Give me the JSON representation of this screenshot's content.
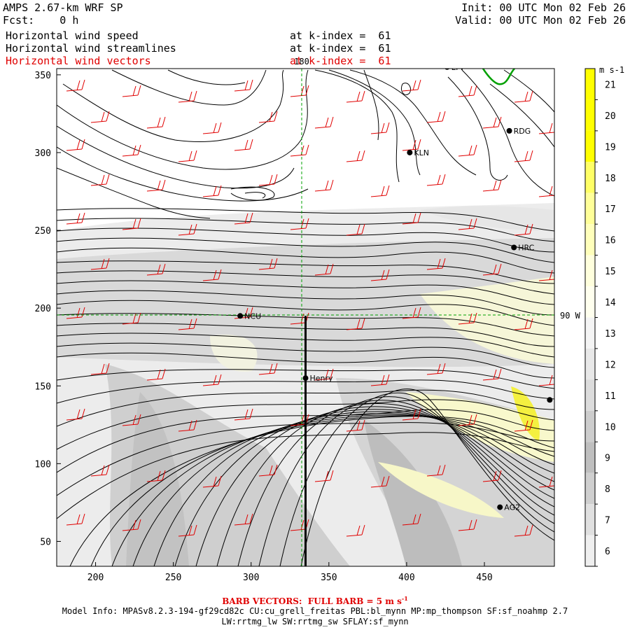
{
  "header": {
    "model_title": "AMPS 2.67-km WRF SP",
    "forecast": "Fcst:    0 h",
    "init": "Init: 00 UTC Mon 02 Feb 26",
    "valid": "Valid: 00 UTC Mon 02 Feb 26",
    "layers": [
      {
        "name": "Horizontal wind speed",
        "level": "at k-index =  61",
        "color": "#000000"
      },
      {
        "name": "Horizontal wind streamlines",
        "level": "at k-index =  61",
        "color": "#000000"
      },
      {
        "name": "Horizontal wind vectors",
        "level": "at k-index =  61",
        "color": "#e00000"
      }
    ]
  },
  "map": {
    "x_ticks": [
      "200",
      "250",
      "300",
      "350",
      "400",
      "450"
    ],
    "y_ticks": [
      "350",
      "300",
      "250",
      "200",
      "150",
      "100",
      "50"
    ],
    "meridian_label": "180",
    "parallel_label": "90 W",
    "stations": [
      {
        "name": "LYV",
        "x": 426,
        "y": 355
      },
      {
        "name": "RDG",
        "x": 466,
        "y": 314
      },
      {
        "name": "KLN",
        "x": 402,
        "y": 300
      },
      {
        "name": "HRC",
        "x": 469,
        "y": 239
      },
      {
        "name": "NCU",
        "x": 293,
        "y": 195
      },
      {
        "name": "Henry",
        "x": 335,
        "y": 155
      },
      {
        "name": "AG2",
        "x": 460,
        "y": 72
      },
      {
        "name": "",
        "x": 492,
        "y": 141
      }
    ],
    "transect": {
      "x": 335,
      "y_from": 34,
      "y_to": 195
    }
  },
  "colorbar": {
    "units": "m s-1",
    "levels": [
      {
        "label": "21",
        "color": "#ffff00"
      },
      {
        "label": "20",
        "color": "#ffff00"
      },
      {
        "label": "19",
        "color": "#ffff00"
      },
      {
        "label": "18",
        "color": "#ffff66"
      },
      {
        "label": "17",
        "color": "#ffff99"
      },
      {
        "label": "16",
        "color": "#ffffbb"
      },
      {
        "label": "15",
        "color": "#ffffdd"
      },
      {
        "label": "14",
        "color": "#ffffee"
      },
      {
        "label": "13",
        "color": "#f4f4f4"
      },
      {
        "label": "12",
        "color": "#e8e8e8"
      },
      {
        "label": "11",
        "color": "#dcdcdc"
      },
      {
        "label": "10",
        "color": "#cdcdcd"
      },
      {
        "label": "9",
        "color": "#bfbfbf"
      },
      {
        "label": "8",
        "color": "#cfcfcf"
      },
      {
        "label": "7",
        "color": "#e0e0e0"
      },
      {
        "label": "6",
        "color": "#efefef"
      }
    ]
  },
  "footer": {
    "barb_prefix": "BARB VECTORS:  FULL BARB = 5 m s",
    "barb_sup": "-1",
    "model_info_1": "Model Info: MPASv8.2.3-194-gf29cd82c CU:cu_grell_freitas PBL:bl_mynn MP:mp_thompson SF:sf_noahmp 2.7",
    "model_info_2": "LW:rrtmg_lw SW:rrtmg_sw SFLAY:sf_mynn"
  }
}
